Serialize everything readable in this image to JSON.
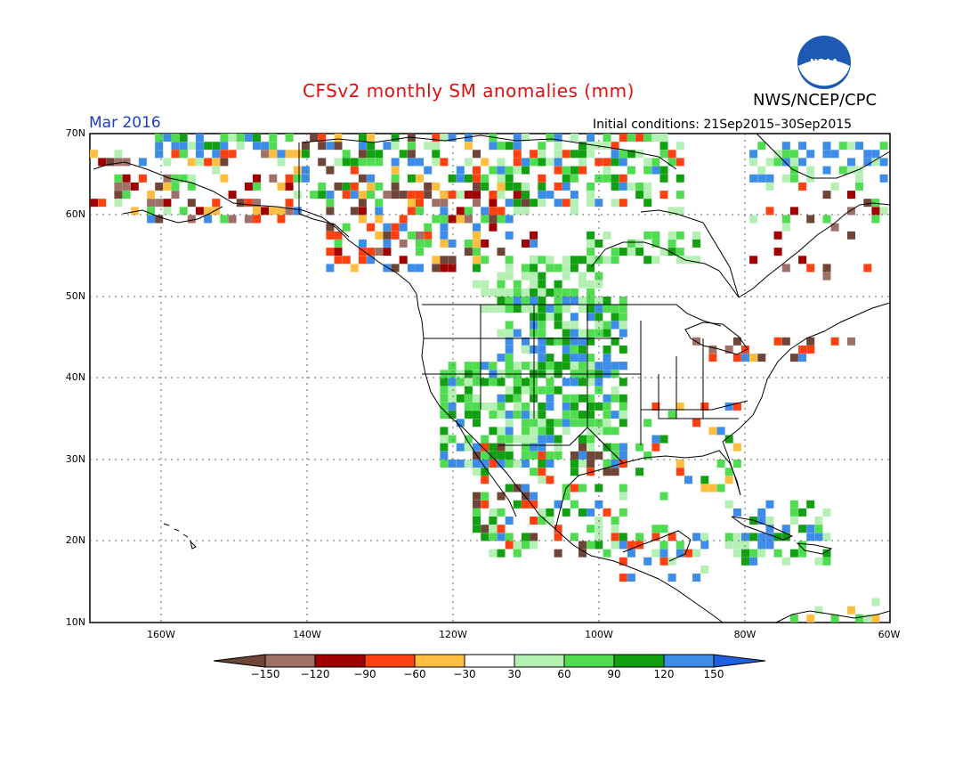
{
  "title": "CFSv2 monthly SM anomalies (mm)",
  "agency": "NWS/NCEP/CPC",
  "logo_text": "NOAA",
  "valid_month": "Mar 2016",
  "initial_conditions": "Initial conditions: 21Sep2015–30Sep2015",
  "lat_labels": [
    "70N",
    "60N",
    "50N",
    "40N",
    "30N",
    "20N",
    "10N"
  ],
  "lon_labels": [
    "160W",
    "140W",
    "120W",
    "100W",
    "80W",
    "60W"
  ],
  "colorbar": {
    "labels": [
      "−150",
      "−120",
      "−90",
      "−60",
      "−30",
      "30",
      "60",
      "90",
      "120",
      "150"
    ],
    "colors": [
      "#6e4537",
      "#9e7068",
      "#a00000",
      "#ff4010",
      "#ffbe40",
      "#ffffff",
      "#b4f0b4",
      "#50dc50",
      "#10a010",
      "#3c8ce8",
      "#2060e0"
    ]
  },
  "map_extent": {
    "lon": [
      -172,
      -60
    ],
    "lat": [
      10,
      70
    ]
  }
}
